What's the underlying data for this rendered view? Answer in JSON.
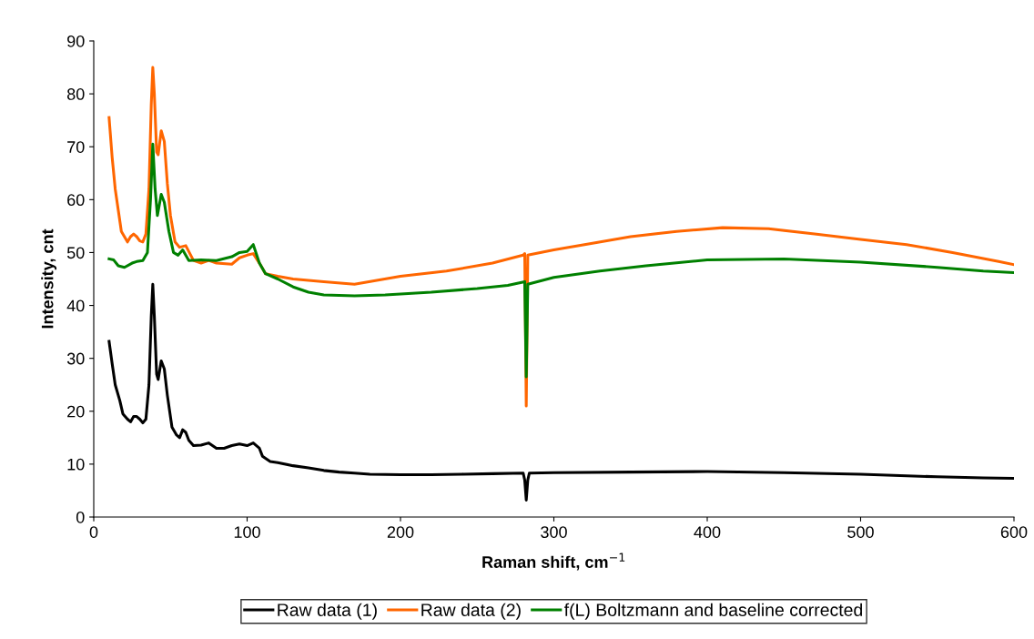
{
  "chart_data": {
    "type": "line",
    "xlabel": "Raman shift, cm$^{−1}$",
    "ylabel": "Intensity, cnt",
    "xlim": [
      0,
      600
    ],
    "xticks": [
      0,
      100,
      200,
      300,
      400,
      500,
      600
    ],
    "ylim": [
      0,
      90
    ],
    "yticks": [
      0,
      10,
      20,
      30,
      40,
      50,
      60,
      70,
      80,
      90
    ],
    "grid": false,
    "legend": "bottom",
    "marker": "none",
    "line_style": "solid",
    "series": [
      {
        "name": "Raw data (1)",
        "color": "#000000",
        "x": [
          10,
          12,
          14,
          17,
          19,
          22,
          24,
          26,
          28,
          30,
          32,
          34,
          36,
          37.5,
          38.5,
          39.5,
          41,
          42,
          44,
          46,
          48,
          51,
          54,
          56,
          58,
          60,
          62,
          65,
          70,
          75,
          80,
          85,
          90,
          95,
          100,
          104,
          108,
          110,
          115,
          120,
          130,
          140,
          150,
          160,
          170,
          180,
          200,
          220,
          240,
          260,
          280,
          281,
          282,
          283,
          284,
          300,
          350,
          400,
          450,
          500,
          550,
          580,
          600
        ],
        "values": [
          33.2,
          29,
          25,
          22,
          19.5,
          18.5,
          18,
          19,
          19,
          18.5,
          17.8,
          18.5,
          25,
          38,
          44,
          38,
          27,
          26,
          29.5,
          28,
          23,
          17,
          15.5,
          15,
          16.5,
          16,
          14.5,
          13.5,
          13.6,
          14,
          13,
          13,
          13.5,
          13.8,
          13.5,
          14,
          13,
          11.5,
          10.5,
          10.3,
          9.7,
          9.3,
          8.8,
          8.5,
          8.3,
          8.1,
          8.0,
          8.0,
          8.1,
          8.2,
          8.3,
          7,
          3.2,
          7,
          8.3,
          8.4,
          8.5,
          8.6,
          8.4,
          8.1,
          7.6,
          7.4,
          7.3
        ]
      },
      {
        "name": "Raw data (2)",
        "color": "#ff6600",
        "x": [
          10,
          12,
          14,
          16,
          18,
          20,
          22,
          24,
          26,
          28,
          30,
          32,
          34,
          36,
          37.5,
          38.5,
          39.5,
          41,
          42,
          44,
          46,
          48,
          50,
          53,
          56,
          60,
          65,
          70,
          75,
          80,
          90,
          95,
          100,
          104,
          108,
          112,
          120,
          130,
          150,
          170,
          200,
          230,
          260,
          280,
          281,
          282,
          283,
          300,
          320,
          350,
          380,
          410,
          440,
          470,
          500,
          530,
          560,
          590,
          600
        ],
        "values": [
          75.5,
          68,
          62,
          58,
          54,
          53,
          52,
          53,
          53.5,
          53,
          52.2,
          52,
          53.5,
          62,
          78,
          85,
          80,
          69,
          68.5,
          73,
          71,
          63,
          57,
          52,
          51,
          51.3,
          48.5,
          48,
          48.5,
          48,
          47.8,
          49,
          49.5,
          49.8,
          48,
          46,
          45.5,
          45,
          44.5,
          44,
          45.5,
          46.5,
          48,
          49.5,
          49.8,
          21,
          49.5,
          50.5,
          51.5,
          53,
          54,
          54.7,
          54.5,
          53.5,
          52.5,
          51.5,
          50,
          48.3,
          47.7
        ]
      },
      {
        "name": "f(L) Boltzmann and baseline corrected",
        "color": "#008000",
        "x": [
          10,
          13,
          16,
          20,
          25,
          28,
          32,
          35,
          37,
          38.5,
          40,
          41.5,
          44,
          46,
          49,
          52,
          55,
          58,
          62,
          70,
          80,
          90,
          95,
          100,
          104,
          108,
          112,
          120,
          130,
          140,
          150,
          170,
          190,
          220,
          250,
          270,
          281,
          282,
          283,
          300,
          330,
          360,
          400,
          450,
          500,
          550,
          580,
          600
        ],
        "values": [
          48.8,
          48.6,
          47.5,
          47.2,
          48,
          48.3,
          48.5,
          50,
          60,
          70.5,
          62,
          57,
          61,
          59.5,
          54,
          50,
          49.5,
          50.5,
          48.5,
          48.6,
          48.5,
          49.2,
          50,
          50.2,
          51.5,
          48,
          46,
          45,
          43.5,
          42.5,
          42,
          41.8,
          42,
          42.5,
          43.2,
          43.8,
          44.5,
          26.5,
          44,
          45.3,
          46.5,
          47.5,
          48.6,
          48.8,
          48.2,
          47.2,
          46.5,
          46.2
        ]
      }
    ]
  }
}
